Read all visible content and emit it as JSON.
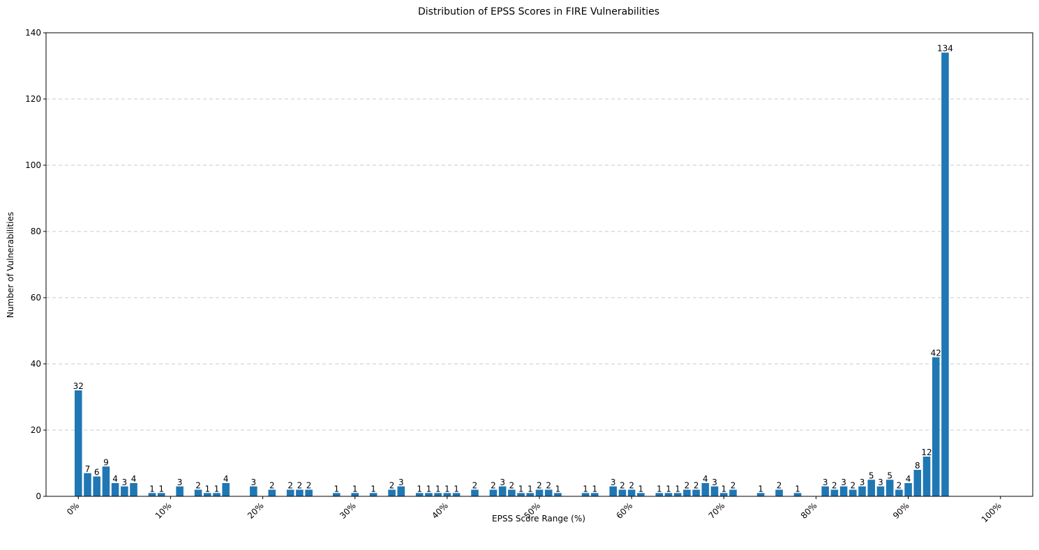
{
  "chart_data": {
    "type": "bar",
    "title": "Distribution of EPSS Scores in FIRE Vulnerabilities",
    "xlabel": "EPSS Score Range (%)",
    "ylabel": "Number of Vulnerabilities",
    "ylim": [
      0,
      140
    ],
    "xlim": [
      -3.5,
      103.5
    ],
    "yticks": [
      0,
      20,
      40,
      60,
      80,
      100,
      120,
      140
    ],
    "xticks": [
      0,
      10,
      20,
      30,
      40,
      50,
      60,
      70,
      80,
      90,
      100
    ],
    "xtick_labels": [
      "0%",
      "10%",
      "20%",
      "30%",
      "40%",
      "50%",
      "60%",
      "70%",
      "80%",
      "90%",
      "100%"
    ],
    "grid": "y-dashed",
    "bar_color": "#1f77b4",
    "bars": [
      {
        "x": 0,
        "value": 32
      },
      {
        "x": 1,
        "value": 7
      },
      {
        "x": 2,
        "value": 6
      },
      {
        "x": 3,
        "value": 9
      },
      {
        "x": 4,
        "value": 4
      },
      {
        "x": 5,
        "value": 3
      },
      {
        "x": 6,
        "value": 4
      },
      {
        "x": 8,
        "value": 1
      },
      {
        "x": 9,
        "value": 1
      },
      {
        "x": 11,
        "value": 3
      },
      {
        "x": 13,
        "value": 2
      },
      {
        "x": 14,
        "value": 1
      },
      {
        "x": 15,
        "value": 1
      },
      {
        "x": 16,
        "value": 4
      },
      {
        "x": 19,
        "value": 3
      },
      {
        "x": 21,
        "value": 2
      },
      {
        "x": 23,
        "value": 2
      },
      {
        "x": 24,
        "value": 2
      },
      {
        "x": 25,
        "value": 2
      },
      {
        "x": 28,
        "value": 1
      },
      {
        "x": 30,
        "value": 1
      },
      {
        "x": 32,
        "value": 1
      },
      {
        "x": 34,
        "value": 2
      },
      {
        "x": 35,
        "value": 3
      },
      {
        "x": 37,
        "value": 1
      },
      {
        "x": 38,
        "value": 1
      },
      {
        "x": 39,
        "value": 1
      },
      {
        "x": 40,
        "value": 1
      },
      {
        "x": 41,
        "value": 1
      },
      {
        "x": 43,
        "value": 2
      },
      {
        "x": 45,
        "value": 2
      },
      {
        "x": 46,
        "value": 3
      },
      {
        "x": 47,
        "value": 2
      },
      {
        "x": 48,
        "value": 1
      },
      {
        "x": 49,
        "value": 1
      },
      {
        "x": 50,
        "value": 2
      },
      {
        "x": 51,
        "value": 2
      },
      {
        "x": 52,
        "value": 1
      },
      {
        "x": 55,
        "value": 1
      },
      {
        "x": 56,
        "value": 1
      },
      {
        "x": 58,
        "value": 3
      },
      {
        "x": 59,
        "value": 2
      },
      {
        "x": 60,
        "value": 2
      },
      {
        "x": 61,
        "value": 1
      },
      {
        "x": 63,
        "value": 1
      },
      {
        "x": 64,
        "value": 1
      },
      {
        "x": 65,
        "value": 1
      },
      {
        "x": 66,
        "value": 2
      },
      {
        "x": 67,
        "value": 2
      },
      {
        "x": 68,
        "value": 4
      },
      {
        "x": 69,
        "value": 3
      },
      {
        "x": 70,
        "value": 1
      },
      {
        "x": 71,
        "value": 2
      },
      {
        "x": 74,
        "value": 1
      },
      {
        "x": 76,
        "value": 2
      },
      {
        "x": 78,
        "value": 1
      },
      {
        "x": 81,
        "value": 3
      },
      {
        "x": 82,
        "value": 2
      },
      {
        "x": 83,
        "value": 3
      },
      {
        "x": 84,
        "value": 2
      },
      {
        "x": 85,
        "value": 3
      },
      {
        "x": 86,
        "value": 5
      },
      {
        "x": 87,
        "value": 3
      },
      {
        "x": 88,
        "value": 5
      },
      {
        "x": 89,
        "value": 2
      },
      {
        "x": 90,
        "value": 4
      },
      {
        "x": 91,
        "value": 8
      },
      {
        "x": 92,
        "value": 12
      },
      {
        "x": 93,
        "value": 42
      },
      {
        "x": 94,
        "value": 134
      }
    ]
  }
}
